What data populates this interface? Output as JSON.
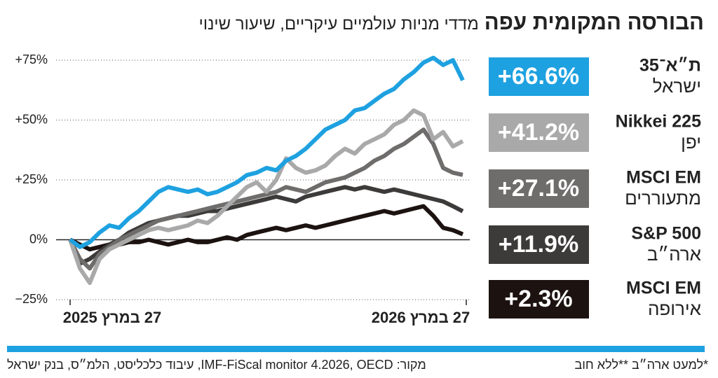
{
  "chart_data": {
    "type": "line",
    "title": "הבורסה המקומית עפה",
    "subtitle": "מדדי מניות עולמיים עיקריים, שיעור שינוי",
    "source": "מקור: IMF-FiScal monitor 4.2026, OECD, עיבוד כלכליסט, הלמ״ס, בנק ישראל",
    "note": "*למעט ארה״ב **ללא חוב",
    "categories": [
      "27 במרץ 2025",
      null,
      null,
      null,
      null,
      null,
      null,
      null,
      null,
      null,
      null,
      null,
      null,
      null,
      null,
      null,
      null,
      null,
      null,
      null,
      null,
      null,
      null,
      null,
      null,
      null,
      null,
      null,
      null,
      null,
      null,
      null,
      null,
      null,
      null,
      null,
      null,
      null,
      null,
      null,
      "27 במרץ 2026"
    ],
    "ylim": [
      -25,
      75
    ],
    "yticks": [
      {
        "value": 75,
        "label": "+75%"
      },
      {
        "value": 50,
        "label": "+50%"
      },
      {
        "value": 25,
        "label": "+25%"
      },
      {
        "value": 0,
        "label": "0%"
      },
      {
        "value": -25,
        "label": "−25%"
      }
    ],
    "grid": true,
    "series": [
      {
        "name": "ת״א־35",
        "region": "ישראל",
        "color": "#1ea1e0",
        "values": [
          0,
          -3,
          -1,
          3,
          6,
          5,
          9,
          12,
          16,
          20,
          22,
          21,
          20,
          21,
          19,
          20,
          22,
          24,
          27,
          28,
          30,
          29,
          33,
          35,
          38,
          42,
          46,
          48,
          50,
          54,
          55,
          58,
          61,
          63,
          67,
          70,
          74,
          76,
          73,
          75,
          66.6
        ],
        "value_labels": [
          null,
          null,
          null,
          null,
          null,
          null,
          null,
          null,
          null,
          null,
          null,
          null,
          null,
          null,
          null,
          null,
          null,
          null,
          null,
          null,
          null,
          null,
          null,
          null,
          null,
          null,
          null,
          null,
          null,
          null,
          null,
          null,
          null,
          null,
          null,
          null,
          null,
          null,
          null,
          null,
          "+66.6%"
        ]
      },
      {
        "name": "Nikkei 225",
        "region": "יפן",
        "color": "#a9a9a9",
        "values": [
          0,
          -12,
          -18,
          -8,
          -4,
          -2,
          0,
          2,
          4,
          5,
          4,
          5,
          6,
          8,
          7,
          10,
          14,
          18,
          22,
          24,
          20,
          25,
          34,
          30,
          28,
          29,
          31,
          35,
          38,
          36,
          40,
          42,
          44,
          48,
          50,
          54,
          52,
          42,
          45,
          39,
          41.2
        ],
        "value_labels": [
          null,
          null,
          null,
          null,
          null,
          null,
          null,
          null,
          null,
          null,
          null,
          null,
          null,
          null,
          null,
          null,
          null,
          null,
          null,
          null,
          null,
          null,
          null,
          null,
          null,
          null,
          null,
          null,
          null,
          null,
          null,
          null,
          null,
          null,
          null,
          null,
          null,
          null,
          null,
          null,
          "+41.2%"
        ]
      },
      {
        "name": "MSCI EM",
        "region": "מתעוררים",
        "color": "#6f6c6c",
        "values": [
          0,
          -8,
          -12,
          -6,
          -3,
          0,
          2,
          4,
          6,
          8,
          9,
          10,
          11,
          12,
          13,
          14,
          15,
          16,
          17,
          18,
          19,
          20,
          22,
          21,
          20,
          22,
          24,
          25,
          26,
          28,
          30,
          33,
          35,
          38,
          40,
          43,
          46,
          40,
          30,
          28,
          27.1
        ],
        "value_labels": [
          null,
          null,
          null,
          null,
          null,
          null,
          null,
          null,
          null,
          null,
          null,
          null,
          null,
          null,
          null,
          null,
          null,
          null,
          null,
          null,
          null,
          null,
          null,
          null,
          null,
          null,
          null,
          null,
          null,
          null,
          null,
          null,
          null,
          null,
          null,
          null,
          null,
          null,
          null,
          null,
          "+27.1%"
        ]
      },
      {
        "name": "S&P 500",
        "region": "ארה״ב",
        "color": "#3d3a3a",
        "values": [
          0,
          -10,
          -8,
          -5,
          -2,
          0,
          3,
          5,
          7,
          8,
          9,
          10,
          10,
          11,
          12,
          12,
          13,
          14,
          15,
          16,
          17,
          18,
          17,
          16,
          18,
          19,
          20,
          21,
          22,
          21,
          22,
          21,
          20,
          21,
          20,
          19,
          18,
          17,
          16,
          14,
          11.9
        ],
        "value_labels": [
          null,
          null,
          null,
          null,
          null,
          null,
          null,
          null,
          null,
          null,
          null,
          null,
          null,
          null,
          null,
          null,
          null,
          null,
          null,
          null,
          null,
          null,
          null,
          null,
          null,
          null,
          null,
          null,
          null,
          null,
          null,
          null,
          null,
          null,
          null,
          null,
          null,
          null,
          null,
          null,
          "+11.9%"
        ]
      },
      {
        "name": "MSCI EM",
        "region": "אירופה",
        "color": "#1c1311",
        "values": [
          0,
          -2,
          -4,
          -3,
          -2,
          -2,
          -1,
          -1,
          0,
          -1,
          -2,
          -1,
          0,
          -1,
          -1,
          0,
          1,
          0,
          2,
          3,
          4,
          5,
          4,
          5,
          6,
          5,
          6,
          7,
          8,
          9,
          10,
          11,
          12,
          11,
          12,
          13,
          14,
          10,
          5,
          4,
          2.3
        ],
        "value_labels": [
          null,
          null,
          null,
          null,
          null,
          null,
          null,
          null,
          null,
          null,
          null,
          null,
          null,
          null,
          null,
          null,
          null,
          null,
          null,
          null,
          null,
          null,
          null,
          null,
          null,
          null,
          null,
          null,
          null,
          null,
          null,
          null,
          null,
          null,
          null,
          null,
          null,
          null,
          null,
          null,
          "+2.3%"
        ]
      }
    ]
  }
}
